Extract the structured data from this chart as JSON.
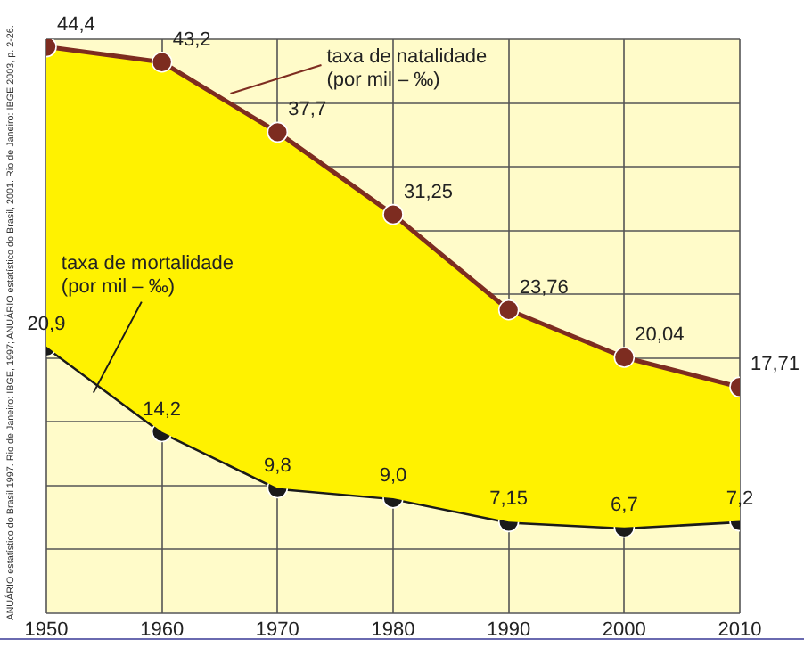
{
  "chart_data": {
    "type": "line",
    "x": [
      1950,
      1960,
      1970,
      1980,
      1990,
      2000,
      2010
    ],
    "xlim": [
      1950,
      2010
    ],
    "xticks": [
      1950,
      1960,
      1970,
      1980,
      1990,
      2000,
      2010
    ],
    "ylim": [
      0,
      45
    ],
    "yticks": [
      {
        "value": 0,
        "label": null
      },
      {
        "value": 5,
        "label": null
      },
      {
        "value": 10,
        "label": null
      },
      {
        "value": 15,
        "label": null
      },
      {
        "value": 20,
        "label": null
      },
      {
        "value": 25,
        "label": null
      },
      {
        "value": 30,
        "label": null
      },
      {
        "value": 35,
        "label": null
      },
      {
        "value": 40,
        "label": null
      },
      {
        "value": 45,
        "label": null
      }
    ],
    "tick_labels": "x",
    "grid": true,
    "marker": "circle",
    "series": [
      {
        "name": "taxa de natalidade (por mil – ‰)",
        "type": "area",
        "color": "#7d2c20",
        "values": [
          44.4,
          43.2,
          37.7,
          31.25,
          23.76,
          20.04,
          17.71
        ],
        "value_labels": [
          "44,4",
          "43,2",
          "37,7",
          "31,25",
          "23,76",
          "20,04",
          "17,71"
        ]
      },
      {
        "name": "taxa de mortalidade (por mil – ‰)",
        "type": "line",
        "color": "#1a1a1a",
        "values": [
          20.9,
          14.2,
          9.8,
          9.0,
          7.15,
          6.7,
          7.2
        ],
        "value_labels": [
          "20,9",
          "14,2",
          "9,8",
          "9,0",
          "7,15",
          "6,7",
          "7,2"
        ]
      }
    ],
    "annotations": [
      "ANUÁRIO estatístico do Brasil 1997. Rio de Janeiro: IBGE, 1997; ANUÁRIO estatístico do Brasil, 2001. Rio de Janeiro: IBGE 2003, p. 2-26."
    ]
  }
}
